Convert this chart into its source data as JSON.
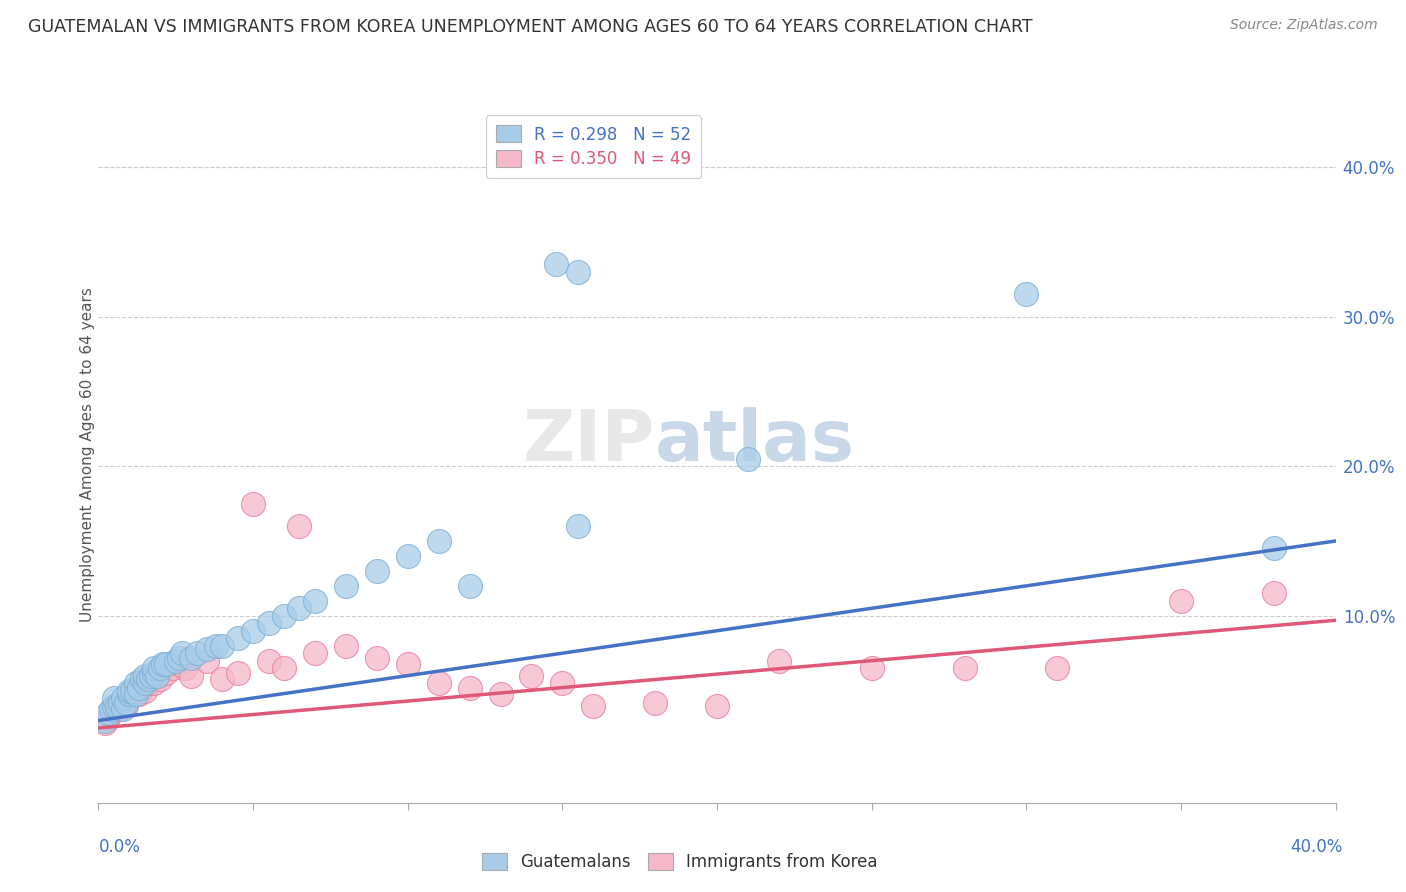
{
  "title": "GUATEMALAN VS IMMIGRANTS FROM KOREA UNEMPLOYMENT AMONG AGES 60 TO 64 YEARS CORRELATION CHART",
  "source": "Source: ZipAtlas.com",
  "ylabel": "Unemployment Among Ages 60 to 64 years",
  "xlim": [
    0.0,
    0.4
  ],
  "ylim": [
    -0.025,
    0.44
  ],
  "guatemalan_R": 0.298,
  "guatemalan_N": 52,
  "korean_R": 0.35,
  "korean_N": 49,
  "blue_color": "#a8cce8",
  "blue_edge_color": "#7aaed6",
  "pink_color": "#f5b8c8",
  "pink_edge_color": "#e87a9a",
  "blue_line_color": "#4472c4",
  "pink_line_color": "#e05878",
  "legend_label_blue": "Guatemalans",
  "legend_label_pink": "Immigrants from Korea",
  "watermark": "ZIPatlas",
  "background_color": "#ffffff",
  "title_fontsize": 12.5,
  "source_fontsize": 10,
  "blue_line_intercept": 0.03,
  "blue_line_slope": 0.3,
  "pink_line_intercept": 0.025,
  "pink_line_slope": 0.18,
  "guatemalan_x": [
    0.002,
    0.003,
    0.004,
    0.005,
    0.005,
    0.006,
    0.007,
    0.008,
    0.008,
    0.009,
    0.01,
    0.01,
    0.011,
    0.012,
    0.012,
    0.013,
    0.014,
    0.015,
    0.015,
    0.016,
    0.017,
    0.018,
    0.018,
    0.019,
    0.02,
    0.021,
    0.022,
    0.025,
    0.026,
    0.027,
    0.03,
    0.032,
    0.035,
    0.038,
    0.04,
    0.045,
    0.05,
    0.055,
    0.06,
    0.065,
    0.07,
    0.08,
    0.09,
    0.1,
    0.11,
    0.12,
    0.148,
    0.155,
    0.21,
    0.155,
    0.3,
    0.38
  ],
  "guatemalan_y": [
    0.03,
    0.035,
    0.038,
    0.04,
    0.045,
    0.04,
    0.042,
    0.038,
    0.045,
    0.042,
    0.048,
    0.05,
    0.05,
    0.055,
    0.048,
    0.052,
    0.058,
    0.055,
    0.06,
    0.058,
    0.06,
    0.062,
    0.065,
    0.06,
    0.065,
    0.068,
    0.068,
    0.07,
    0.072,
    0.075,
    0.072,
    0.075,
    0.078,
    0.08,
    0.08,
    0.085,
    0.09,
    0.095,
    0.1,
    0.105,
    0.11,
    0.12,
    0.13,
    0.14,
    0.15,
    0.12,
    0.335,
    0.33,
    0.205,
    0.16,
    0.315,
    0.145
  ],
  "korean_x": [
    0.002,
    0.003,
    0.004,
    0.005,
    0.006,
    0.007,
    0.008,
    0.009,
    0.01,
    0.011,
    0.012,
    0.013,
    0.014,
    0.015,
    0.016,
    0.017,
    0.018,
    0.019,
    0.02,
    0.022,
    0.024,
    0.026,
    0.028,
    0.03,
    0.035,
    0.04,
    0.045,
    0.05,
    0.055,
    0.06,
    0.065,
    0.07,
    0.08,
    0.09,
    0.1,
    0.11,
    0.12,
    0.13,
    0.14,
    0.15,
    0.16,
    0.18,
    0.2,
    0.22,
    0.25,
    0.28,
    0.31,
    0.35,
    0.38
  ],
  "korean_y": [
    0.028,
    0.032,
    0.035,
    0.038,
    0.04,
    0.038,
    0.042,
    0.04,
    0.045,
    0.048,
    0.05,
    0.048,
    0.052,
    0.05,
    0.055,
    0.058,
    0.055,
    0.06,
    0.058,
    0.062,
    0.065,
    0.068,
    0.065,
    0.06,
    0.07,
    0.058,
    0.062,
    0.175,
    0.07,
    0.065,
    0.16,
    0.075,
    0.08,
    0.072,
    0.068,
    0.055,
    0.052,
    0.048,
    0.06,
    0.055,
    0.04,
    0.042,
    0.04,
    0.07,
    0.065,
    0.065,
    0.065,
    0.11,
    0.115
  ]
}
